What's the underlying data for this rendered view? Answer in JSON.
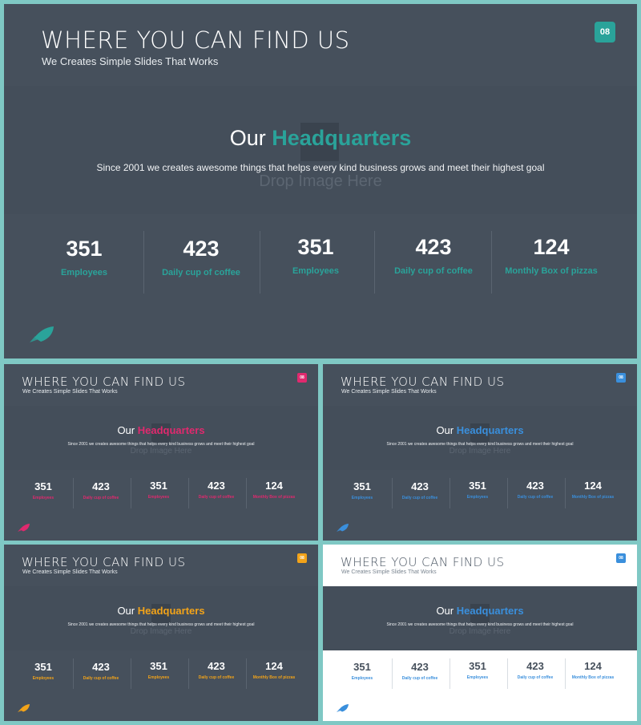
{
  "slides": [
    {
      "title": "WHERE YOU CAN FIND US",
      "subtitle": "We Creates Simple Slides That Works",
      "badge": "08",
      "hq_prefix": "Our",
      "hq_accent": "Headquarters",
      "description": "Since 2001 we creates awesome things that helps every kind business grows and meet their highest goal",
      "placeholder": "Drop Image Here",
      "accent": "#2aa39a",
      "stats": [
        {
          "value": "351",
          "label": "Employees"
        },
        {
          "value": "423",
          "label": "Daily cup of coffee"
        },
        {
          "value": "351",
          "label": "Employees"
        },
        {
          "value": "423",
          "label": "Daily cup of coffee"
        },
        {
          "value": "124",
          "label": "Monthly Box of pizzas"
        }
      ]
    },
    {
      "title": "WHERE YOU CAN FIND US",
      "subtitle": "We Creates Simple Slides That Works",
      "badge": "08",
      "hq_prefix": "Our",
      "hq_accent": "Headquarters",
      "description": "Since 2001 we creates awesome things that helps every kind business grows and meet their highest goal",
      "placeholder": "Drop Image Here",
      "accent": "#e0296e",
      "stats": [
        {
          "value": "351",
          "label": "Employees"
        },
        {
          "value": "423",
          "label": "Daily cup of coffee"
        },
        {
          "value": "351",
          "label": "Employees"
        },
        {
          "value": "423",
          "label": "Daily cup of coffee"
        },
        {
          "value": "124",
          "label": "Monthly Box of pizzas"
        }
      ]
    },
    {
      "title": "WHERE YOU CAN FIND US",
      "subtitle": "We Creates Simple Slides That Works",
      "badge": "08",
      "hq_prefix": "Our",
      "hq_accent": "Headquarters",
      "description": "Since 2001 we creates awesome things that helps every kind business grows and meet their highest goal",
      "placeholder": "Drop Image Here",
      "accent": "#3a8fdc",
      "stats": [
        {
          "value": "351",
          "label": "Employees"
        },
        {
          "value": "423",
          "label": "Daily cup of coffee"
        },
        {
          "value": "351",
          "label": "Employees"
        },
        {
          "value": "423",
          "label": "Daily cup of coffee"
        },
        {
          "value": "124",
          "label": "Monthly Box of pizzas"
        }
      ]
    },
    {
      "title": "WHERE YOU CAN FIND US",
      "subtitle": "We Creates Simple Slides That Works",
      "badge": "08",
      "hq_prefix": "Our",
      "hq_accent": "Headquarters",
      "description": "Since 2001 we creates awesome things that helps every kind business grows and meet their highest goal",
      "placeholder": "Drop Image Here",
      "accent": "#f2a319",
      "stats": [
        {
          "value": "351",
          "label": "Employees"
        },
        {
          "value": "423",
          "label": "Daily cup of coffee"
        },
        {
          "value": "351",
          "label": "Employees"
        },
        {
          "value": "423",
          "label": "Daily cup of coffee"
        },
        {
          "value": "124",
          "label": "Monthly Box of pizzas"
        }
      ]
    },
    {
      "title": "WHERE YOU CAN FIND US",
      "subtitle": "We Creates Simple Slides That Works",
      "badge": "08",
      "hq_prefix": "Our",
      "hq_accent": "Headquarters",
      "description": "Since 2001 we creates awesome things that helps every kind business grows and meet their highest goal",
      "placeholder": "Drop Image Here",
      "accent": "#3a8fdc",
      "stats": [
        {
          "value": "351",
          "label": "Employees"
        },
        {
          "value": "423",
          "label": "Daily cup of coffee"
        },
        {
          "value": "351",
          "label": "Employees"
        },
        {
          "value": "423",
          "label": "Daily cup of coffee"
        },
        {
          "value": "124",
          "label": "Monthly Box of pizzas"
        }
      ]
    }
  ],
  "icons": {
    "rocket": "rocket-icon"
  }
}
